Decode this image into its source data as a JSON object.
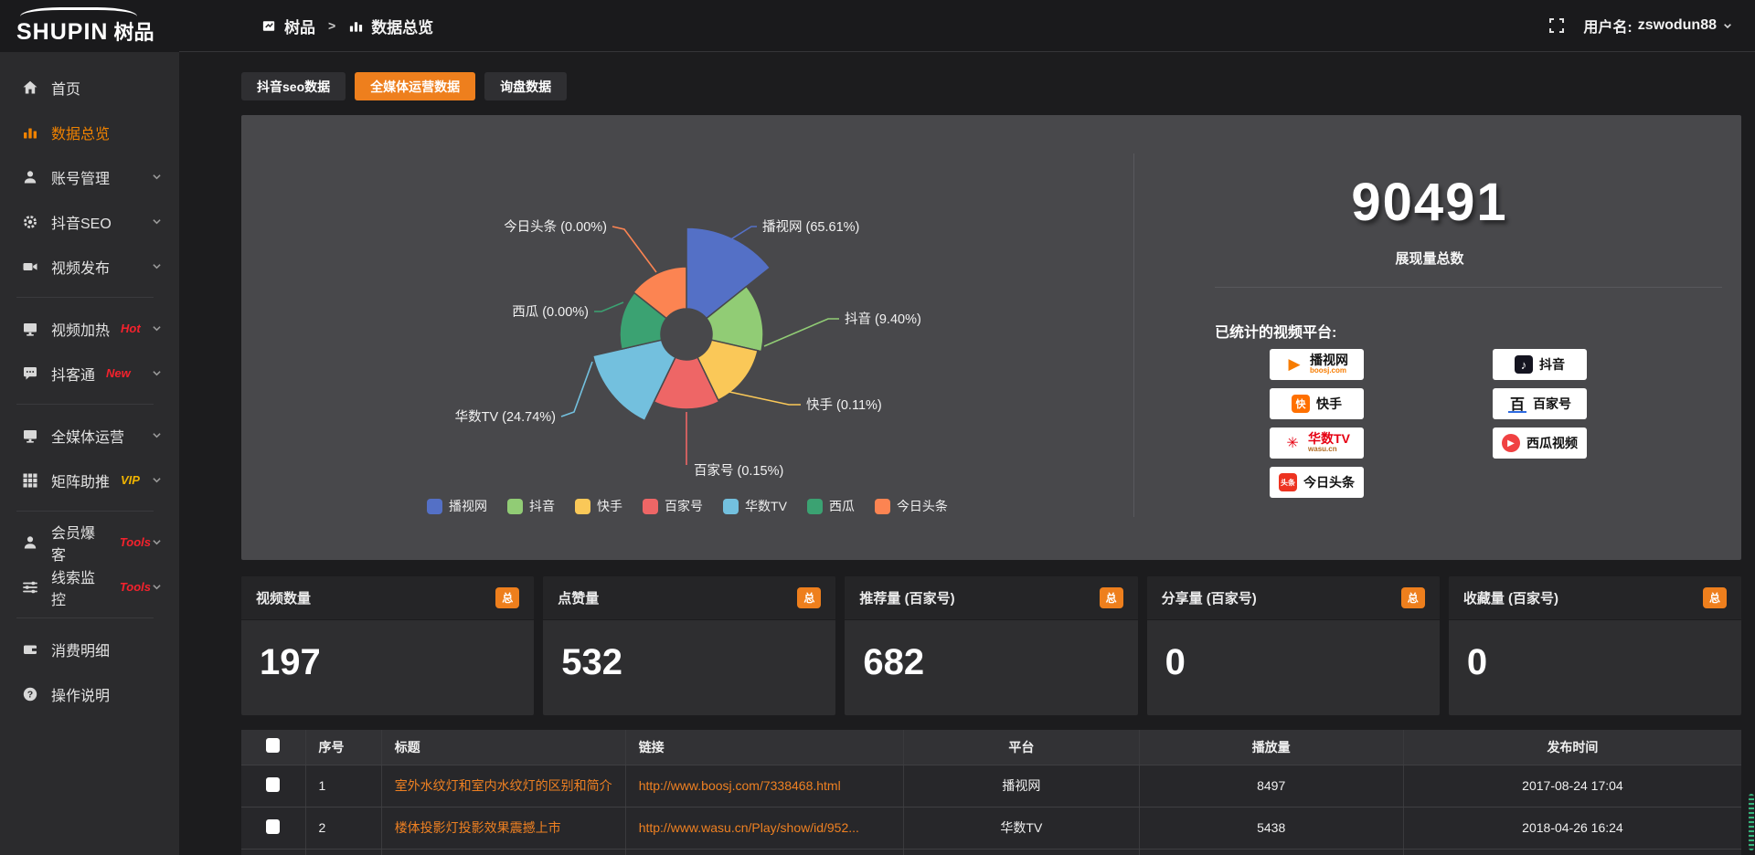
{
  "theme": {
    "accent": "#ee7f1d",
    "sidebar_active": "#f08200",
    "link_orange": "#ee8022",
    "hot_red": "#f5222d",
    "vip_gold": "#f0b400",
    "panel_bg": "#48484b"
  },
  "brand": {
    "latin": "SHUPIN",
    "cjk": "树品"
  },
  "topbar": {
    "breadcrumb": [
      {
        "label": "树品"
      },
      {
        "label": "数据总览"
      }
    ],
    "username_label": "用户名:",
    "username": "zswodun88"
  },
  "sidebar": {
    "items": [
      {
        "label": "首页",
        "icon": "home"
      },
      {
        "label": "数据总览",
        "icon": "bar-chart",
        "active": true
      },
      {
        "label": "账号管理",
        "icon": "user",
        "chevron": true
      },
      {
        "label": "抖音SEO",
        "icon": "gear",
        "chevron": true
      },
      {
        "label": "视频发布",
        "icon": "video",
        "chevron": true,
        "divider_after": true
      },
      {
        "label": "视频加热",
        "icon": "monitor",
        "badge": "Hot",
        "badge_color": "#f5222d",
        "chevron": true
      },
      {
        "label": "抖客通",
        "icon": "chat",
        "badge": "New",
        "badge_color": "#f5222d",
        "chevron": true,
        "divider_after": true
      },
      {
        "label": "全媒体运营",
        "icon": "monitor",
        "chevron": true
      },
      {
        "label": "矩阵助推",
        "icon": "grid",
        "badge": "VIP",
        "badge_color": "#f0b400",
        "chevron": true,
        "divider_after": true
      },
      {
        "label": "会员爆客",
        "icon": "user",
        "badge": "Tools",
        "badge_color": "#f5222d",
        "chevron": true
      },
      {
        "label": "线索监控",
        "icon": "sliders",
        "badge": "Tools",
        "badge_color": "#f5222d",
        "chevron": true,
        "divider_after": true
      },
      {
        "label": "消费明细",
        "icon": "wallet"
      },
      {
        "label": "操作说明",
        "icon": "question"
      }
    ]
  },
  "tabs": [
    {
      "label": "抖音seo数据",
      "active": false
    },
    {
      "label": "全媒体运营数据",
      "active": true
    },
    {
      "label": "询盘数据",
      "active": false
    }
  ],
  "chart_data": {
    "type": "pie",
    "rose": true,
    "legend_position": "bottom",
    "items": [
      {
        "name": "播视网",
        "value": 65.61,
        "percent": "65.61%",
        "label": "播视网 (65.61%)",
        "color": "#5470c6",
        "radius": 117
      },
      {
        "name": "抖音",
        "value": 9.4,
        "percent": "9.40%",
        "label": "抖音 (9.40%)",
        "color": "#91cc75",
        "radius": 84
      },
      {
        "name": "快手",
        "value": 0.11,
        "percent": "0.11%",
        "label": "快手 (0.11%)",
        "color": "#fac858",
        "radius": 80
      },
      {
        "name": "百家号",
        "value": 0.15,
        "percent": "0.15%",
        "label": "百家号 (0.15%)",
        "color": "#ee6666",
        "radius": 82
      },
      {
        "name": "华数TV",
        "value": 24.74,
        "percent": "24.74%",
        "label": "华数TV (24.74%)",
        "color": "#73c0de",
        "radius": 105
      },
      {
        "name": "西瓜",
        "value": 0.0,
        "percent": "0.00%",
        "label": "西瓜 (0.00%)",
        "color": "#3ba272",
        "radius": 73
      },
      {
        "name": "今日头条",
        "value": 0.0,
        "percent": "0.00%",
        "label": "今日头条 (0.00%)",
        "color": "#fc8452",
        "radius": 74
      }
    ]
  },
  "overview": {
    "total": "90491",
    "total_label": "展现量总数",
    "platforms_label": "已统计的视频平台:",
    "platforms_left": [
      {
        "name": "播视网",
        "sub": "boosj.com",
        "icon": "boosj"
      },
      {
        "name": "快手",
        "icon": "kuaishou"
      },
      {
        "name": "华数TV",
        "sub": "wasu.cn",
        "icon": "wasu"
      },
      {
        "name": "今日头条",
        "icon": "toutiao"
      }
    ],
    "platforms_right": [
      {
        "name": "抖音",
        "icon": "douyin"
      },
      {
        "name": "百家号",
        "icon": "baijia"
      },
      {
        "name": "西瓜视频",
        "icon": "xigua"
      }
    ]
  },
  "cards": [
    {
      "title": "视频数量",
      "badge": "总",
      "value": "197"
    },
    {
      "title": "点赞量",
      "badge": "总",
      "value": "532"
    },
    {
      "title": "推荐量 (百家号)",
      "badge": "总",
      "value": "682"
    },
    {
      "title": "分享量 (百家号)",
      "badge": "总",
      "value": "0"
    },
    {
      "title": "收藏量 (百家号)",
      "badge": "总",
      "value": "0"
    }
  ],
  "table": {
    "headers": [
      "序号",
      "标题",
      "链接",
      "平台",
      "播放量",
      "发布时间"
    ],
    "rows": [
      {
        "no": "1",
        "title": "室外水纹灯和室内水纹灯的区别和简介",
        "link": "http://www.boosj.com/7338468.html",
        "platform": "播视网",
        "plays": "8497",
        "time": "2017-08-24 17:04"
      },
      {
        "no": "2",
        "title": "楼体投影灯投影效果震撼上市",
        "link": "http://www.wasu.cn/Play/show/id/952...",
        "platform": "华数TV",
        "plays": "5438",
        "time": "2018-04-26 16:24"
      }
    ]
  }
}
